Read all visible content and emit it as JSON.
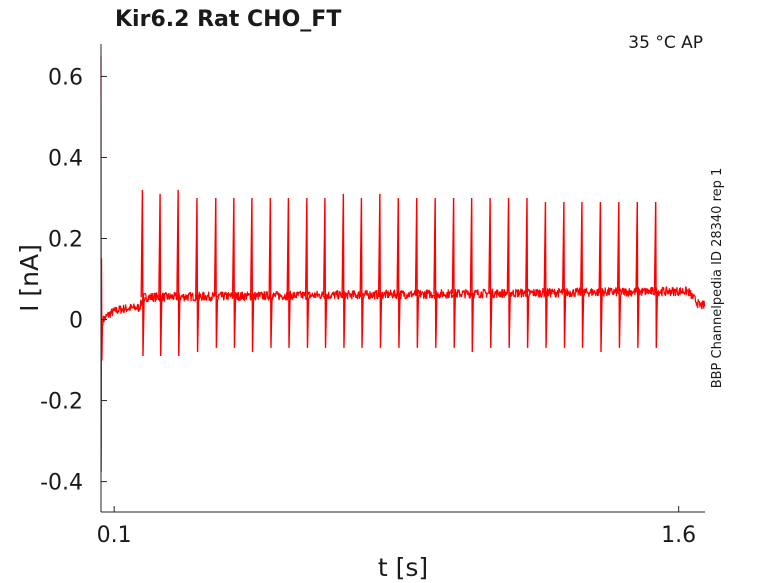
{
  "chart_data": {
    "type": "line",
    "title": "Kir6.2  Rat  CHO_FT",
    "condition": "35 °C  AP",
    "side_label": "BBP Channelpedia ID 28340 rep 1",
    "xlabel": "t [s]",
    "ylabel": "I [nA]",
    "xlim": [
      0.065,
      1.67
    ],
    "ylim": [
      -0.475,
      0.68
    ],
    "x_ticks": [
      {
        "value": 0.1,
        "label": "0.1"
      },
      {
        "value": 1.6,
        "label": "1.6"
      }
    ],
    "y_ticks": [
      {
        "value": 0.6,
        "label": "0.6"
      },
      {
        "value": 0.4,
        "label": "0.4"
      },
      {
        "value": 0.2,
        "label": "0.2"
      },
      {
        "value": 0,
        "label": "0"
      },
      {
        "value": -0.2,
        "label": "-0.2"
      },
      {
        "value": -0.4,
        "label": "-0.4"
      }
    ],
    "grid": false,
    "series": [
      {
        "color": "#ff0000",
        "stimulus_on": 0.167,
        "stimulus_off": 1.625,
        "baseline_start": 0.0,
        "baseline_pre": 0.03,
        "plateau_start": 0.055,
        "plateau_end": 0.07,
        "post_level": 0.035,
        "initial_transient_peak": 0.65,
        "initial_transient_trough": -0.375,
        "spike_times": [
          0.175,
          0.222,
          0.27,
          0.32,
          0.37,
          0.418,
          0.466,
          0.515,
          0.563,
          0.612,
          0.66,
          0.709,
          0.757,
          0.806,
          0.855,
          0.904,
          0.953,
          1.002,
          1.05,
          1.099,
          1.148,
          1.197,
          1.246,
          1.295,
          1.343,
          1.392,
          1.441,
          1.49,
          1.539
        ],
        "spike_peaks": [
          0.32,
          0.31,
          0.32,
          0.3,
          0.3,
          0.3,
          0.3,
          0.3,
          0.3,
          0.3,
          0.3,
          0.31,
          0.3,
          0.31,
          0.3,
          0.3,
          0.3,
          0.3,
          0.3,
          0.3,
          0.3,
          0.3,
          0.29,
          0.29,
          0.29,
          0.29,
          0.29,
          0.29,
          0.29
        ],
        "spike_troughs": [
          -0.09,
          -0.09,
          -0.09,
          -0.08,
          -0.07,
          -0.07,
          -0.08,
          -0.07,
          -0.07,
          -0.07,
          -0.07,
          -0.07,
          -0.07,
          -0.07,
          -0.07,
          -0.07,
          -0.07,
          -0.07,
          -0.08,
          -0.07,
          -0.07,
          -0.07,
          -0.07,
          -0.07,
          -0.07,
          -0.08,
          -0.07,
          -0.07,
          -0.07
        ]
      }
    ]
  }
}
